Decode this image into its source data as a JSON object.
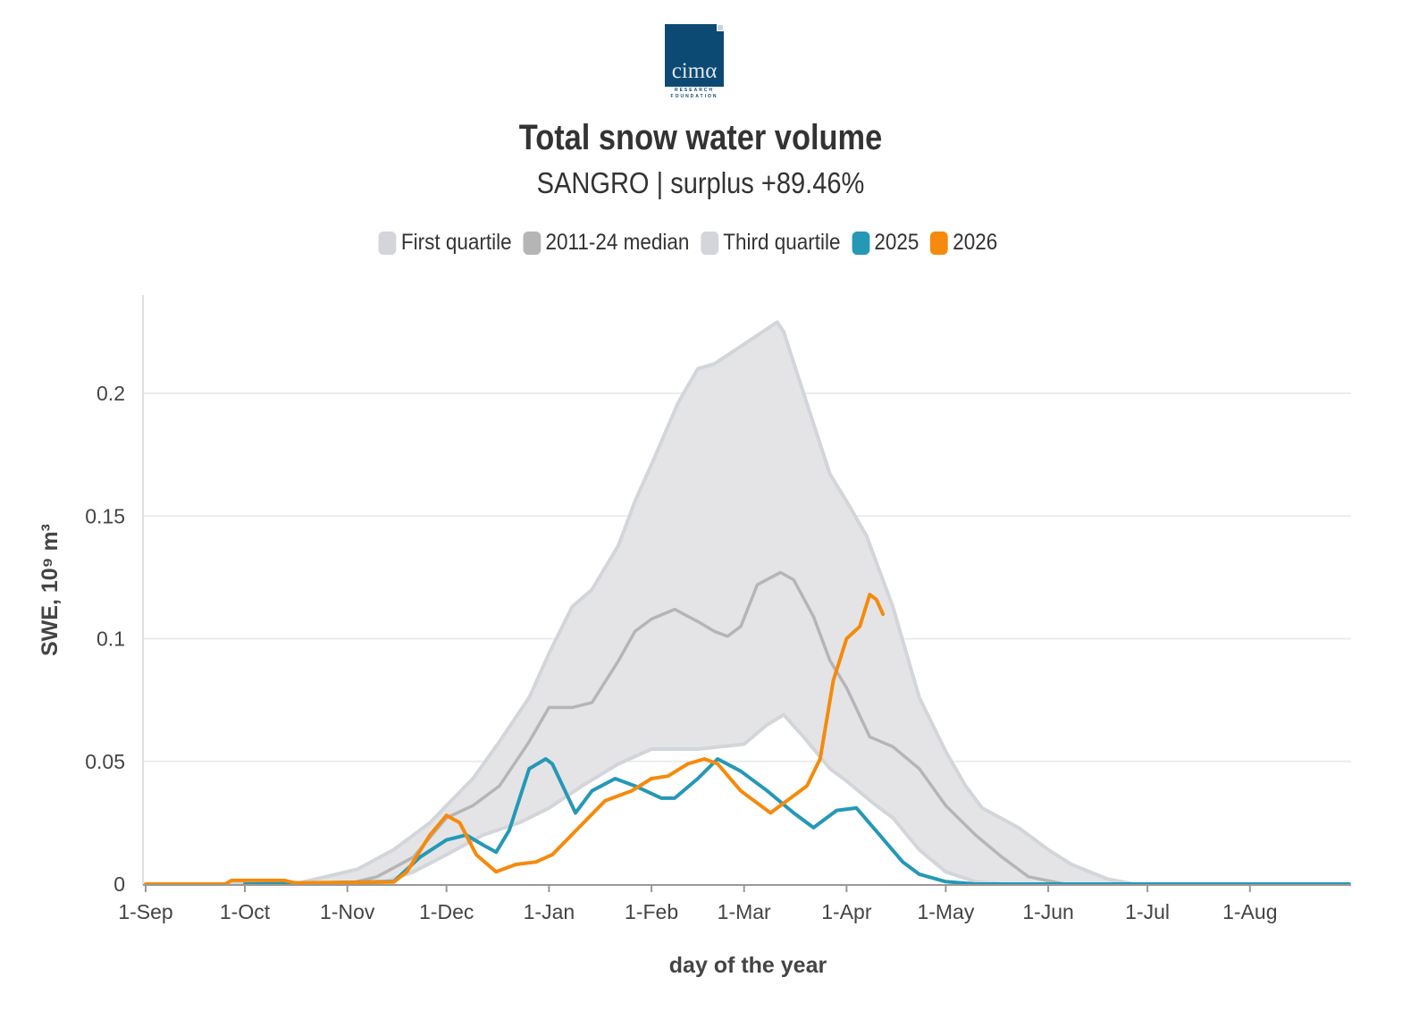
{
  "logo": {
    "word": "cimα",
    "line1": "RESEARCH",
    "line2": "FOUNDATION"
  },
  "title": "Total snow water volume",
  "subtitle": "SANGRO | surplus +89.46%",
  "legend": [
    {
      "label": "First quartile",
      "color": "#d3d5da"
    },
    {
      "label": "2011-24 median",
      "color": "#b5b5b5"
    },
    {
      "label": "Third quartile",
      "color": "#d3d5da"
    },
    {
      "label": "2025",
      "color": "#2598b6"
    },
    {
      "label": "2026",
      "color": "#f58a0c"
    }
  ],
  "chart_data": {
    "type": "line",
    "xlabel": "day of the year",
    "ylabel": "SWE, 10⁹ m³",
    "ylim": [
      0,
      0.24
    ],
    "yticks": [
      0,
      0.05,
      0.1,
      0.15,
      0.2
    ],
    "ytick_labels": [
      "0",
      "0.05",
      "0.1",
      "0.15",
      "0.2"
    ],
    "xticks": [
      "1-Sep",
      "1-Oct",
      "1-Nov",
      "1-Dec",
      "1-Jan",
      "1-Feb",
      "1-Mar",
      "1-Apr",
      "1-May",
      "1-Jun",
      "1-Jul",
      "1-Aug"
    ],
    "grid": true,
    "legend_position": "top",
    "band": {
      "upper_name": "Third quartile",
      "lower_name": "First quartile",
      "upper": [
        [
          "1-Sep",
          0
        ],
        [
          "16-Oct",
          0
        ],
        [
          "4-Nov",
          0.006
        ],
        [
          "15-Nov",
          0.014
        ],
        [
          "26-Nov",
          0.025
        ],
        [
          "1-Dec",
          0.032
        ],
        [
          "9-Dec",
          0.043
        ],
        [
          "17-Dec",
          0.058
        ],
        [
          "26-Dec",
          0.076
        ],
        [
          "1-Jan",
          0.094
        ],
        [
          "8-Jan",
          0.113
        ],
        [
          "14-Jan",
          0.12
        ],
        [
          "22-Jan",
          0.138
        ],
        [
          "27-Jan",
          0.156
        ],
        [
          "1-Feb",
          0.171
        ],
        [
          "9-Feb",
          0.196
        ],
        [
          "15-Feb",
          0.21
        ],
        [
          "20-Feb",
          0.212
        ],
        [
          "1-Mar",
          0.22
        ],
        [
          "11-Mar",
          0.229
        ],
        [
          "13-Mar",
          0.225
        ],
        [
          "19-Mar",
          0.2
        ],
        [
          "27-Mar",
          0.167
        ],
        [
          "1-Apr",
          0.156
        ],
        [
          "7-Apr",
          0.142
        ],
        [
          "15-Apr",
          0.113
        ],
        [
          "23-Apr",
          0.076
        ],
        [
          "1-May",
          0.054
        ],
        [
          "7-May",
          0.04
        ],
        [
          "12-May",
          0.031
        ],
        [
          "23-May",
          0.023
        ],
        [
          "1-Jun",
          0.014
        ],
        [
          "8-Jun",
          0.008
        ],
        [
          "19-Jun",
          0.002
        ],
        [
          "27-Jun",
          0
        ],
        [
          "31-Aug",
          0
        ]
      ],
      "lower": [
        [
          "1-Sep",
          0
        ],
        [
          "10-Nov",
          0
        ],
        [
          "21-Nov",
          0.005
        ],
        [
          "1-Dec",
          0.012
        ],
        [
          "12-Dec",
          0.02
        ],
        [
          "23-Dec",
          0.025
        ],
        [
          "1-Jan",
          0.031
        ],
        [
          "11-Jan",
          0.04
        ],
        [
          "22-Jan",
          0.049
        ],
        [
          "1-Feb",
          0.055
        ],
        [
          "15-Feb",
          0.055
        ],
        [
          "1-Mar",
          0.057
        ],
        [
          "8-Mar",
          0.065
        ],
        [
          "13-Mar",
          0.069
        ],
        [
          "19-Mar",
          0.06
        ],
        [
          "27-Mar",
          0.047
        ],
        [
          "1-Apr",
          0.042
        ],
        [
          "10-Apr",
          0.032
        ],
        [
          "15-Apr",
          0.027
        ],
        [
          "23-Apr",
          0.014
        ],
        [
          "1-May",
          0.005
        ],
        [
          "10-May",
          0.001
        ],
        [
          "18-May",
          0
        ],
        [
          "31-Aug",
          0
        ]
      ]
    },
    "series": [
      {
        "name": "2011-24 median",
        "color": "#b5b5b5",
        "points": [
          [
            "1-Nov",
            0
          ],
          [
            "10-Nov",
            0.003
          ],
          [
            "21-Nov",
            0.011
          ],
          [
            "1-Dec",
            0.027
          ],
          [
            "9-Dec",
            0.032
          ],
          [
            "17-Dec",
            0.04
          ],
          [
            "26-Dec",
            0.058
          ],
          [
            "1-Jan",
            0.072
          ],
          [
            "8-Jan",
            0.072
          ],
          [
            "14-Jan",
            0.074
          ],
          [
            "22-Jan",
            0.091
          ],
          [
            "27-Jan",
            0.103
          ],
          [
            "1-Feb",
            0.108
          ],
          [
            "8-Feb",
            0.112
          ],
          [
            "15-Feb",
            0.107
          ],
          [
            "20-Feb",
            0.103
          ],
          [
            "24-Feb",
            0.101
          ],
          [
            "28-Feb",
            0.105
          ],
          [
            "5-Mar",
            0.122
          ],
          [
            "12-Mar",
            0.127
          ],
          [
            "16-Mar",
            0.124
          ],
          [
            "22-Mar",
            0.109
          ],
          [
            "27-Mar",
            0.091
          ],
          [
            "1-Apr",
            0.08
          ],
          [
            "8-Apr",
            0.06
          ],
          [
            "15-Apr",
            0.056
          ],
          [
            "23-Apr",
            0.047
          ],
          [
            "1-May",
            0.032
          ],
          [
            "10-May",
            0.02
          ],
          [
            "18-May",
            0.011
          ],
          [
            "26-May",
            0.003
          ],
          [
            "6-Jun",
            0
          ]
        ]
      },
      {
        "name": "2025",
        "color": "#2598b6",
        "points": [
          [
            "1-Oct",
            0
          ],
          [
            "15-Nov",
            0.001
          ],
          [
            "23-Nov",
            0.011
          ],
          [
            "1-Dec",
            0.018
          ],
          [
            "7-Dec",
            0.02
          ],
          [
            "12-Dec",
            0.016
          ],
          [
            "16-Dec",
            0.013
          ],
          [
            "20-Dec",
            0.022
          ],
          [
            "26-Dec",
            0.047
          ],
          [
            "31-Dec",
            0.051
          ],
          [
            "2-Jan",
            0.049
          ],
          [
            "9-Jan",
            0.029
          ],
          [
            "14-Jan",
            0.038
          ],
          [
            "21-Jan",
            0.043
          ],
          [
            "27-Jan",
            0.04
          ],
          [
            "4-Feb",
            0.035
          ],
          [
            "8-Feb",
            0.035
          ],
          [
            "15-Feb",
            0.043
          ],
          [
            "21-Feb",
            0.051
          ],
          [
            "28-Feb",
            0.046
          ],
          [
            "8-Mar",
            0.038
          ],
          [
            "16-Mar",
            0.029
          ],
          [
            "22-Mar",
            0.023
          ],
          [
            "29-Mar",
            0.03
          ],
          [
            "4-Apr",
            0.031
          ],
          [
            "11-Apr",
            0.02
          ],
          [
            "18-Apr",
            0.009
          ],
          [
            "23-Apr",
            0.004
          ],
          [
            "1-May",
            0.001
          ],
          [
            "10-May",
            0
          ],
          [
            "31-Aug",
            0
          ]
        ]
      },
      {
        "name": "2026",
        "color": "#f58a0c",
        "points": [
          [
            "1-Sep",
            0
          ],
          [
            "25-Sep",
            0
          ],
          [
            "27-Sep",
            0.0015
          ],
          [
            "13-Oct",
            0.0015
          ],
          [
            "16-Oct",
            0.0005
          ],
          [
            "15-Nov",
            0.0008
          ],
          [
            "19-Nov",
            0.005
          ],
          [
            "26-Nov",
            0.02
          ],
          [
            "1-Dec",
            0.028
          ],
          [
            "5-Dec",
            0.025
          ],
          [
            "10-Dec",
            0.012
          ],
          [
            "16-Dec",
            0.005
          ],
          [
            "22-Dec",
            0.008
          ],
          [
            "28-Dec",
            0.009
          ],
          [
            "2-Jan",
            0.012
          ],
          [
            "10-Jan",
            0.023
          ],
          [
            "18-Jan",
            0.034
          ],
          [
            "26-Jan",
            0.038
          ],
          [
            "1-Feb",
            0.043
          ],
          [
            "6-Feb",
            0.044
          ],
          [
            "12-Feb",
            0.049
          ],
          [
            "17-Feb",
            0.051
          ],
          [
            "21-Feb",
            0.049
          ],
          [
            "28-Feb",
            0.038
          ],
          [
            "9-Mar",
            0.029
          ],
          [
            "16-Mar",
            0.036
          ],
          [
            "20-Mar",
            0.04
          ],
          [
            "24-Mar",
            0.051
          ],
          [
            "28-Mar",
            0.083
          ],
          [
            "1-Apr",
            0.1
          ],
          [
            "5-Apr",
            0.105
          ],
          [
            "8-Apr",
            0.118
          ],
          [
            "10-Apr",
            0.116
          ],
          [
            "12-Apr",
            0.11
          ]
        ]
      }
    ]
  }
}
